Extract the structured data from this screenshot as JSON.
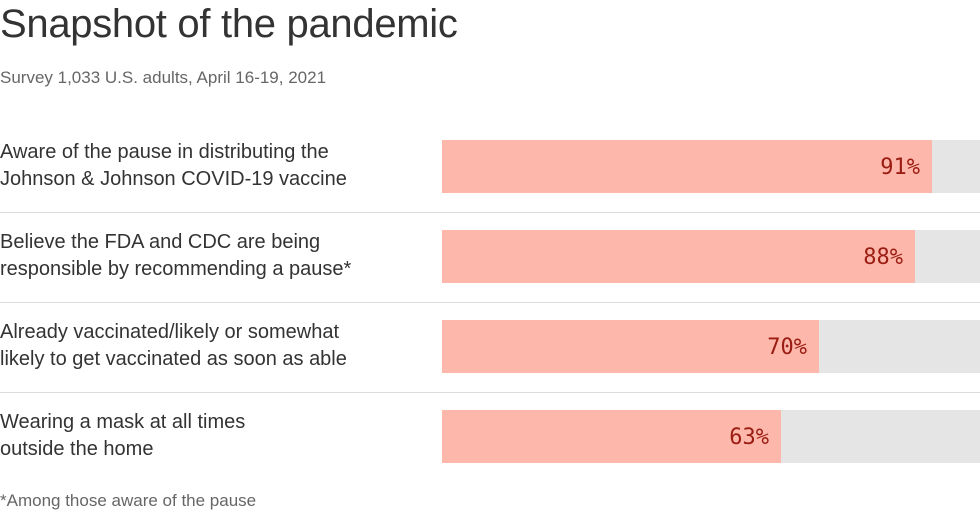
{
  "title": "Snapshot of the pandemic",
  "subtitle": "Survey 1,033 U.S. adults, April 16-19, 2021",
  "footnote": "*Among those aware of the pause",
  "colors": {
    "bar_fill": "#fdb8ab",
    "bar_track": "#e5e5e5",
    "value_text": "#9b1c12",
    "text": "#333333",
    "muted_text": "#666666",
    "divider": "#dcdcdc"
  },
  "chart_data": {
    "type": "bar",
    "orientation": "horizontal",
    "title": "Snapshot of the pandemic",
    "subtitle": "Survey 1,033 U.S. adults, April 16-19, 2021",
    "xlim": [
      0,
      100
    ],
    "unit": "%",
    "grid": false,
    "categories": [
      [
        "Aware of the pause in distributing the",
        "Johnson & Johnson COVID-19 vaccine"
      ],
      [
        "Believe the FDA and CDC are being",
        "responsible by recommending a pause*"
      ],
      [
        "Already vaccinated/likely or somewhat",
        "likely to get vaccinated as soon as able"
      ],
      [
        "Wearing a mask at all times",
        "outside the home"
      ]
    ],
    "values": [
      91,
      88,
      70,
      63
    ],
    "value_labels": [
      "91%",
      "88%",
      "70%",
      "63%"
    ]
  }
}
